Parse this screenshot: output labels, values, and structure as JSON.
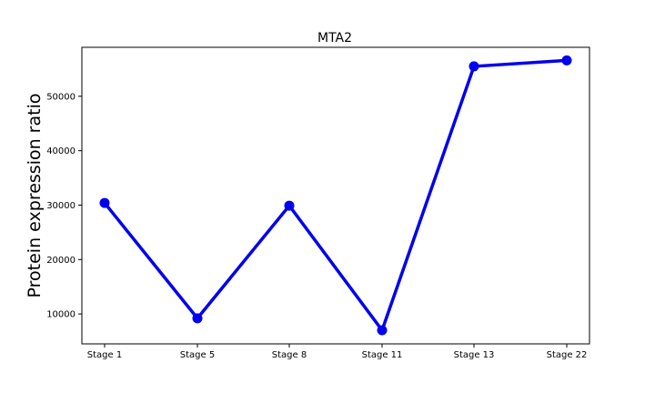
{
  "chart_data": {
    "type": "line",
    "title": "MTA2",
    "xlabel": "",
    "ylabel": "Protein expression ratio",
    "categories": [
      "Stage 1",
      "Stage 5",
      "Stage 8",
      "Stage 11",
      "Stage 13",
      "Stage 22"
    ],
    "series": [
      {
        "values": [
          30400,
          9200,
          29900,
          7000,
          55500,
          56600
        ]
      }
    ],
    "ylim": [
      4500,
      59000
    ],
    "yticks": [
      10000,
      20000,
      30000,
      40000,
      50000
    ],
    "ytick_labels": [
      "10000",
      "20000",
      "30000",
      "40000",
      "50000"
    ],
    "grid": false,
    "line_color": "#0000ee"
  }
}
